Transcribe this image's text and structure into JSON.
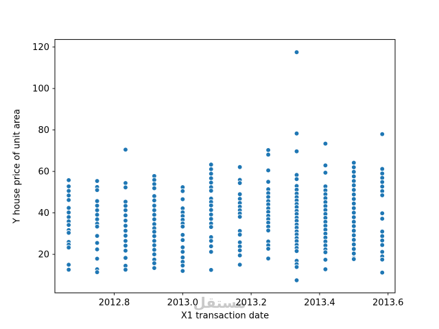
{
  "figure": {
    "background": "#ffffff",
    "title": ""
  },
  "watermark": {
    "text": "مستقل",
    "color": "#c9c9c9"
  },
  "chart_data": {
    "type": "scatter",
    "title": "",
    "xlabel": "X1 transaction date",
    "ylabel": "Y house price of unit area",
    "xlim": [
      2012.6266,
      2013.6206
    ],
    "ylim": [
      1.45,
      123.65
    ],
    "x_ticks": [
      2012.8,
      2013.0,
      2013.2,
      2013.4,
      2013.6
    ],
    "x_tick_labels": [
      "2012.8",
      "2013.0",
      "2013.2",
      "2013.4",
      "2013.6"
    ],
    "y_ticks": [
      20,
      40,
      60,
      80,
      100,
      120
    ],
    "y_tick_labels": [
      "20",
      "40",
      "60",
      "80",
      "100",
      "120"
    ],
    "grid": false,
    "legend": null,
    "marker": {
      "color": "#1f77b4",
      "edge_color": "#ffffff",
      "radius": 3.4,
      "edge_width": 0.9
    },
    "spine_color": "#000000",
    "series": [
      {
        "name": "Y house price of unit area",
        "columns": [
          {
            "x": 2012.667,
            "y": [
              55.8,
              52.8,
              50.6,
              48.4,
              46.2,
              42.4,
              40.2,
              38.0,
              35.9,
              34.2,
              31.7,
              30.4,
              26.0,
              24.7,
              23.3,
              15.0,
              12.6
            ]
          },
          {
            "x": 2012.75,
            "y": [
              55.4,
              52.5,
              51.0,
              45.7,
              43.5,
              41.3,
              39.1,
              36.9,
              34.8,
              33.4,
              28.9,
              25.5,
              22.4,
              17.9,
              12.8,
              11.4
            ]
          },
          {
            "x": 2012.833,
            "y": [
              70.5,
              54.4,
              52.3,
              45.4,
              43.4,
              41.3,
              38.8,
              36.3,
              33.8,
              31.4,
              29.0,
              26.5,
              24.2,
              21.8,
              18.3,
              14.5,
              12.6
            ]
          },
          {
            "x": 2012.917,
            "y": [
              57.8,
              55.9,
              53.9,
              51.9,
              48.1,
              46.0,
              43.5,
              41.3,
              39.1,
              36.9,
              34.6,
              32.6,
              30.9,
              28.8,
              26.5,
              24.4,
              22.2,
              20.0,
              17.5,
              15.7,
              13.4
            ]
          },
          {
            "x": 2013.0,
            "y": [
              52.4,
              50.5,
              46.6,
              42.2,
              40.3,
              38.5,
              36.7,
              34.9,
              33.4,
              29.4,
              26.9,
              23.4,
              21.2,
              18.5,
              16.4,
              14.6,
              12.0
            ]
          },
          {
            "x": 2013.083,
            "y": [
              63.3,
              61.1,
              58.9,
              56.7,
              54.6,
              52.4,
              50.7,
              46.9,
              45.3,
              43.6,
              41.4,
              39.2,
              37.1,
              34.9,
              33.2,
              28.3,
              26.5,
              23.9,
              21.2,
              12.5
            ]
          },
          {
            "x": 2013.167,
            "y": [
              62.1,
              55.9,
              54.4,
              49.0,
              46.8,
              44.8,
              43.0,
              41.3,
              39.7,
              38.1,
              31.3,
              29.5,
              25.8,
              23.8,
              21.9,
              19.5,
              15.0
            ]
          },
          {
            "x": 2013.25,
            "y": [
              70.3,
              68.1,
              60.5,
              55.0,
              51.4,
              49.5,
              47.7,
              45.7,
              44.1,
              42.2,
              40.5,
              38.6,
              37.0,
              35.3,
              33.4,
              31.5,
              26.2,
              24.4,
              22.7,
              18.0
            ]
          },
          {
            "x": 2013.333,
            "y": [
              117.5,
              78.3,
              69.7,
              58.3,
              56.3,
              53.0,
              51.2,
              49.3,
              47.6,
              46.0,
              44.3,
              42.8,
              41.0,
              39.5,
              37.7,
              36.2,
              34.4,
              32.9,
              31.1,
              29.6,
              27.9,
              26.4,
              24.6,
              23.1,
              21.6,
              16.9,
              15.3,
              13.9,
              7.5
            ]
          },
          {
            "x": 2013.417,
            "y": [
              73.4,
              62.9,
              59.4,
              52.8,
              50.9,
              49.0,
              47.1,
              45.2,
              43.3,
              41.4,
              39.5,
              37.6,
              35.7,
              33.8,
              31.9,
              30.0,
              28.1,
              26.2,
              24.3,
              22.4,
              21.0,
              17.4,
              12.8
            ]
          },
          {
            "x": 2013.5,
            "y": [
              64.2,
              62.0,
              59.8,
              57.6,
              55.4,
              53.3,
              51.1,
              48.9,
              46.7,
              44.5,
              42.3,
              40.1,
              37.9,
              35.7,
              33.6,
              31.4,
              29.2,
              27.0,
              24.8,
              22.6,
              20.4,
              18.2,
              17.7
            ]
          },
          {
            "x": 2013.583,
            "y": [
              78.0,
              61.2,
              59.0,
              56.9,
              54.9,
              52.7,
              50.5,
              48.5,
              39.8,
              37.2,
              31.0,
              28.8,
              26.7,
              24.5,
              21.2,
              19.0,
              17.5,
              11.2
            ]
          }
        ]
      }
    ]
  }
}
